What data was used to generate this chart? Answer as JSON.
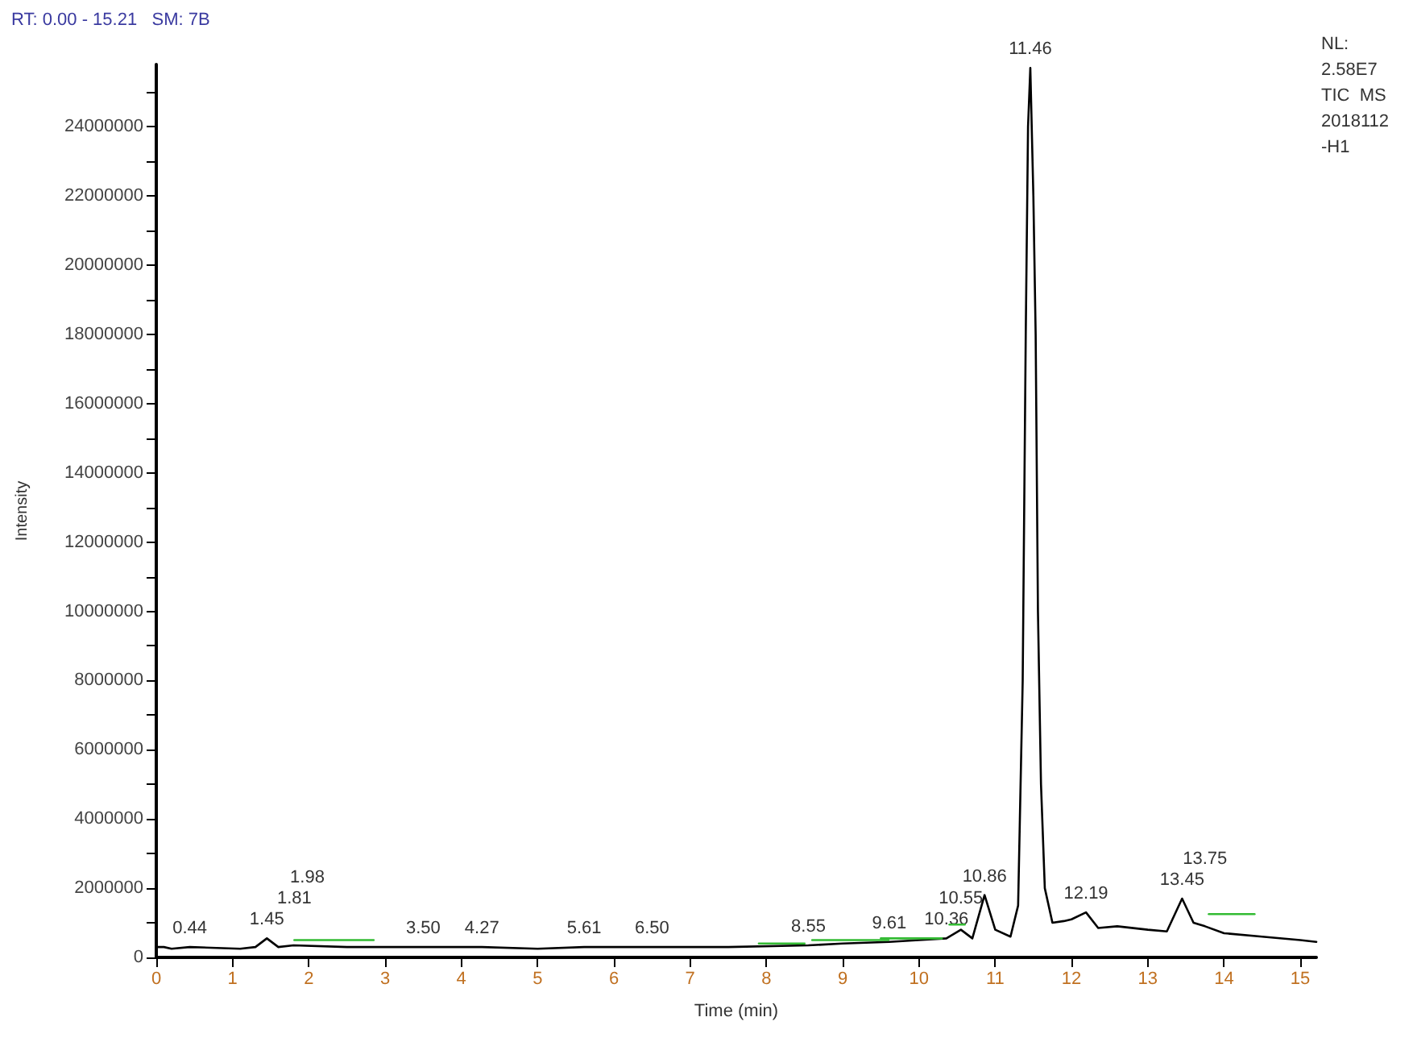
{
  "chart_data": {
    "type": "line",
    "title": "RT: 0.00 - 15.21   SM: 7B",
    "xlabel": "Time (min)",
    "ylabel": "Intensity",
    "xlim": [
      0,
      15.21
    ],
    "xticks": [
      0,
      1,
      2,
      3,
      4,
      5,
      6,
      7,
      8,
      9,
      10,
      11,
      12,
      13,
      14,
      15
    ],
    "ylim": [
      0,
      25800000
    ],
    "yticks": [
      0,
      {
        "value": 1000000,
        "label": null
      },
      2000000,
      {
        "value": 3000000,
        "label": null
      },
      4000000,
      {
        "value": 5000000,
        "label": null
      },
      6000000,
      {
        "value": 7000000,
        "label": null
      },
      8000000,
      {
        "value": 9000000,
        "label": null
      },
      10000000,
      {
        "value": 11000000,
        "label": null
      },
      12000000,
      {
        "value": 13000000,
        "label": null
      },
      14000000,
      {
        "value": 15000000,
        "label": null
      },
      16000000,
      {
        "value": 17000000,
        "label": null
      },
      18000000,
      {
        "value": 19000000,
        "label": null
      },
      20000000,
      {
        "value": 21000000,
        "label": null
      },
      22000000,
      {
        "value": 23000000,
        "label": null
      },
      24000000,
      {
        "value": 25000000,
        "label": null
      }
    ],
    "grid": false,
    "marker": "none",
    "line_style": "solid",
    "series": [
      {
        "color": "#000000",
        "x": [
          0,
          0.1,
          0.2,
          0.44,
          1.1,
          1.3,
          1.45,
          1.6,
          1.8,
          2.5,
          3.2,
          3.5,
          4.27,
          5.0,
          5.61,
          6.5,
          7.5,
          8.55,
          9.0,
          9.61,
          10.0,
          10.36,
          10.55,
          10.7,
          10.86,
          11.0,
          11.2,
          11.3,
          11.36,
          11.4,
          11.43,
          11.46,
          11.5,
          11.53,
          11.56,
          11.6,
          11.65,
          11.75,
          11.9,
          12.0,
          12.19,
          12.35,
          12.6,
          13.0,
          13.25,
          13.45,
          13.6,
          13.75,
          14.0,
          14.5,
          15.0,
          15.21
        ],
        "values": [
          300000,
          300000,
          250000,
          300000,
          250000,
          300000,
          550000,
          300000,
          350000,
          300000,
          300000,
          300000,
          300000,
          250000,
          300000,
          300000,
          300000,
          350000,
          400000,
          450000,
          500000,
          550000,
          800000,
          550000,
          1800000,
          800000,
          600000,
          1500000,
          8000000,
          18000000,
          24000000,
          25700000,
          22000000,
          18000000,
          10000000,
          5000000,
          2000000,
          1000000,
          1050000,
          1100000,
          1300000,
          850000,
          900000,
          800000,
          750000,
          1700000,
          1000000,
          900000,
          700000,
          600000,
          500000,
          450000
        ]
      },
      {
        "color": "#33bb33",
        "x": [
          1.81,
          2.85
        ],
        "values": [
          500000,
          500000
        ]
      },
      {
        "color": "#33bb33",
        "x": [
          7.9,
          8.5
        ],
        "values": [
          400000,
          400000
        ]
      },
      {
        "color": "#33bb33",
        "x": [
          8.6,
          9.6
        ],
        "values": [
          500000,
          500000
        ]
      },
      {
        "color": "#33bb33",
        "x": [
          9.5,
          10.3
        ],
        "values": [
          550000,
          550000
        ]
      },
      {
        "color": "#33bb33",
        "x": [
          10.4,
          10.6
        ],
        "values": [
          950000,
          950000
        ]
      },
      {
        "color": "#33bb33",
        "x": [
          13.8,
          14.4
        ],
        "values": [
          1250000,
          1250000
        ]
      }
    ],
    "annotations": [
      {
        "text": "0.44",
        "x": 0.44,
        "y": 300000
      },
      {
        "text": "1.45",
        "x": 1.45,
        "y": 550000
      },
      {
        "text": "1.81",
        "x": 1.81,
        "y": 350000
      },
      {
        "text": "1.98",
        "x": 1.98,
        "y": 500000
      },
      {
        "text": "3.50",
        "x": 3.5,
        "y": 300000
      },
      {
        "text": "4.27",
        "x": 4.27,
        "y": 300000
      },
      {
        "text": "5.61",
        "x": 5.61,
        "y": 300000
      },
      {
        "text": "6.50",
        "x": 6.5,
        "y": 300000
      },
      {
        "text": "8.55",
        "x": 8.55,
        "y": 350000
      },
      {
        "text": "9.61",
        "x": 9.61,
        "y": 450000
      },
      {
        "text": "10.36",
        "x": 10.36,
        "y": 550000
      },
      {
        "text": "10.55",
        "x": 10.55,
        "y": 950000
      },
      {
        "text": "10.86",
        "x": 10.86,
        "y": 1800000
      },
      {
        "text": "11.46",
        "x": 11.46,
        "y": 25700000
      },
      {
        "text": "12.19",
        "x": 12.19,
        "y": 1300000
      },
      {
        "text": "13.45",
        "x": 13.45,
        "y": 1700000
      },
      {
        "text": "13.75",
        "x": 13.75,
        "y": 1250000
      },
      "NL:",
      "2.58E7",
      "TIC  MS",
      "2018112",
      "-H1"
    ]
  }
}
